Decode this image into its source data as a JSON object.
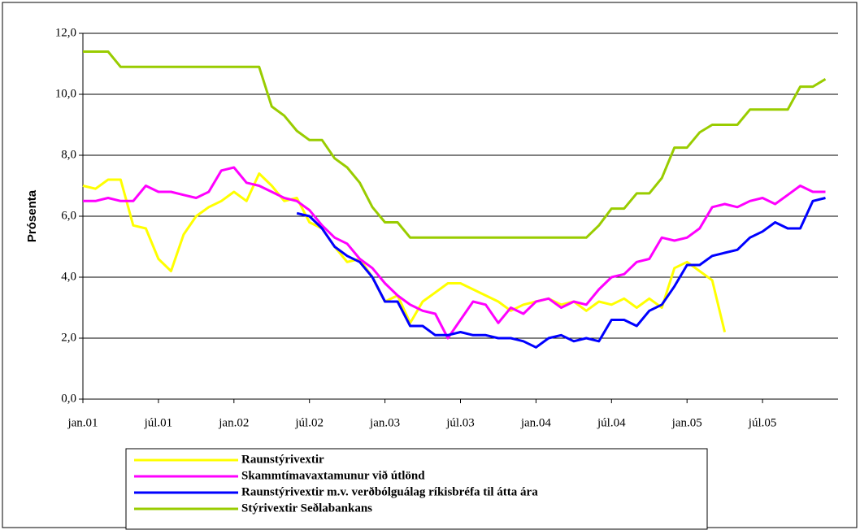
{
  "chart_data": {
    "type": "line",
    "y_label": "Prósenta",
    "categories": [
      "jan.01",
      null,
      null,
      null,
      null,
      null,
      "júl.01",
      null,
      null,
      null,
      null,
      null,
      "jan.02",
      null,
      null,
      null,
      null,
      null,
      "júl.02",
      null,
      null,
      null,
      null,
      null,
      "jan.03",
      null,
      null,
      null,
      null,
      null,
      "júl.03",
      null,
      null,
      null,
      null,
      null,
      "jan.04",
      null,
      null,
      null,
      null,
      null,
      "júl.04",
      null,
      null,
      null,
      null,
      null,
      "jan.05",
      null,
      null,
      null,
      null,
      null,
      "júl.05",
      null,
      null,
      null,
      null,
      null
    ],
    "ylim": [
      0,
      12
    ],
    "yticks": [
      {
        "value": 0,
        "label": "0,0"
      },
      {
        "value": 2,
        "label": "2,0"
      },
      {
        "value": 4,
        "label": "4,0"
      },
      {
        "value": 6,
        "label": "6,0"
      },
      {
        "value": 8,
        "label": "8,0"
      },
      {
        "value": 10,
        "label": "10,0"
      },
      {
        "value": 12,
        "label": "12,0"
      }
    ],
    "grid": true,
    "legend": "bottom",
    "series": [
      {
        "name": "Raunstýrivextir",
        "color": "#ffff00",
        "values": [
          7.0,
          6.9,
          7.2,
          7.2,
          5.7,
          5.6,
          4.6,
          4.2,
          5.4,
          6.0,
          6.3,
          6.5,
          6.8,
          6.5,
          7.4,
          7.0,
          6.5,
          6.6,
          5.8,
          5.6,
          5.0,
          4.5,
          4.6,
          4.0,
          3.2,
          3.4,
          2.5,
          3.2,
          3.5,
          3.8,
          3.8,
          3.6,
          3.4,
          3.2,
          2.9,
          3.1,
          3.2,
          3.3,
          3.1,
          3.2,
          2.9,
          3.2,
          3.1,
          3.3,
          3.0,
          3.3,
          3.0,
          4.3,
          4.5,
          4.2,
          3.9,
          2.2,
          null,
          null,
          null,
          null,
          null,
          null,
          null,
          null
        ]
      },
      {
        "name": "Skammtímavaxtamunur við útlönd",
        "color": "#ff00ff",
        "values": [
          6.5,
          6.5,
          6.6,
          6.5,
          6.5,
          7.0,
          6.8,
          6.8,
          6.7,
          6.6,
          6.8,
          7.5,
          7.6,
          7.1,
          7.0,
          6.8,
          6.6,
          6.5,
          6.2,
          5.7,
          5.3,
          5.1,
          4.6,
          4.3,
          3.8,
          3.4,
          3.1,
          2.9,
          2.8,
          2.0,
          2.6,
          3.2,
          3.1,
          2.5,
          3.0,
          2.8,
          3.2,
          3.3,
          3.0,
          3.2,
          3.1,
          3.6,
          4.0,
          4.1,
          4.5,
          4.6,
          5.3,
          5.2,
          5.3,
          5.6,
          6.3,
          6.4,
          6.3,
          6.5,
          6.6,
          6.4,
          6.7,
          7.0,
          6.8,
          6.8
        ]
      },
      {
        "name": "Raunstýrivextir m.v. verðbólguálag ríkisbréfa til átta ára",
        "color": "#0000ff",
        "values": [
          null,
          null,
          null,
          null,
          null,
          null,
          null,
          null,
          null,
          null,
          null,
          null,
          null,
          null,
          null,
          null,
          null,
          6.1,
          6.0,
          5.6,
          5.0,
          4.7,
          4.5,
          4.0,
          3.2,
          3.2,
          2.4,
          2.4,
          2.1,
          2.1,
          2.2,
          2.1,
          2.1,
          2.0,
          2.0,
          1.9,
          1.7,
          2.0,
          2.1,
          1.9,
          2.0,
          1.9,
          2.6,
          2.6,
          2.4,
          2.9,
          3.1,
          3.7,
          4.4,
          4.4,
          4.7,
          4.8,
          4.9,
          5.3,
          5.5,
          5.8,
          5.6,
          5.6,
          6.5,
          6.6
        ]
      },
      {
        "name": "Stýrivextir Seðlabankans",
        "color": "#99cc00",
        "values": [
          11.4,
          11.4,
          11.4,
          10.9,
          10.9,
          10.9,
          10.9,
          10.9,
          10.9,
          10.9,
          10.9,
          10.9,
          10.9,
          10.9,
          10.9,
          9.6,
          9.3,
          8.8,
          8.5,
          8.5,
          7.9,
          7.6,
          7.1,
          6.3,
          5.8,
          5.8,
          5.3,
          5.3,
          5.3,
          5.3,
          5.3,
          5.3,
          5.3,
          5.3,
          5.3,
          5.3,
          5.3,
          5.3,
          5.3,
          5.3,
          5.3,
          5.7,
          6.25,
          6.25,
          6.75,
          6.75,
          7.25,
          8.25,
          8.25,
          8.75,
          9.0,
          9.0,
          9.0,
          9.5,
          9.5,
          9.5,
          9.5,
          10.25,
          10.25,
          10.5
        ]
      }
    ]
  }
}
